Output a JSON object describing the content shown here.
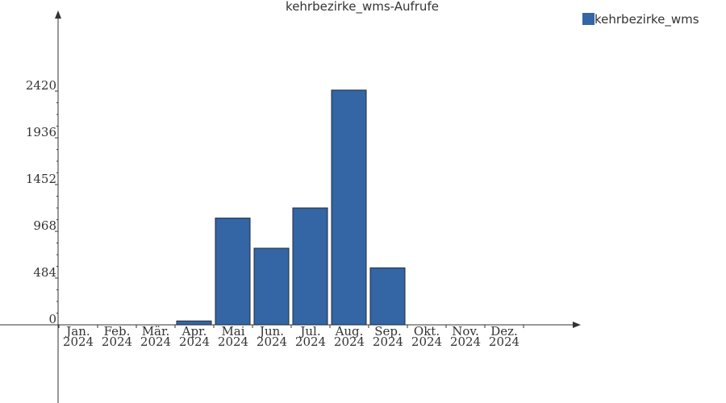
{
  "chart_data": {
    "type": "bar",
    "title": "kehrbezirke_wms-Aufrufe",
    "categories": [
      [
        "Jan.",
        "2024"
      ],
      [
        "Feb.",
        "2024"
      ],
      [
        "Mär.",
        "2024"
      ],
      [
        "Apr.",
        "2024"
      ],
      [
        "Mai",
        "2024"
      ],
      [
        "Jun.",
        "2024"
      ],
      [
        "Jul.",
        "2024"
      ],
      [
        "Aug.",
        "2024"
      ],
      [
        "Sep.",
        "2024"
      ],
      [
        "Okt.",
        "2024"
      ],
      [
        "Nov.",
        "2024"
      ],
      [
        "Dez.",
        "2024"
      ]
    ],
    "series": [
      {
        "name": "kehrbezirke_wms",
        "color": "#3465a4",
        "values": [
          0,
          0,
          0,
          40,
          1105,
          793,
          1210,
          2430,
          590,
          0,
          0,
          0
        ]
      }
    ],
    "yticks": [
      0,
      484,
      968,
      1452,
      1936,
      2420
    ],
    "legend_position": "top-right",
    "grid": false
  }
}
